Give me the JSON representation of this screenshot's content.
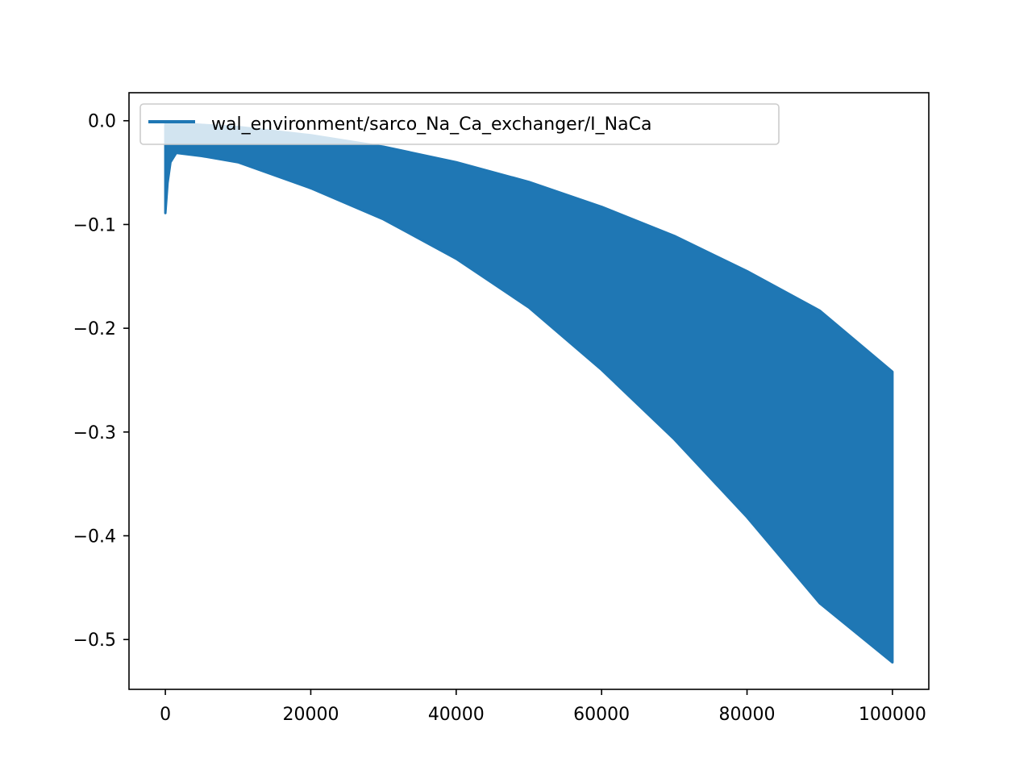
{
  "chart_data": {
    "type": "area",
    "title": "",
    "xlabel": "",
    "ylabel": "",
    "xlim": [
      -5000,
      105000
    ],
    "ylim": [
      -0.548,
      0.027
    ],
    "grid": false,
    "legend_position": "top-left",
    "xticks": [
      {
        "value": 0,
        "label": "0"
      },
      {
        "value": 20000,
        "label": "20000"
      },
      {
        "value": 40000,
        "label": "40000"
      },
      {
        "value": 60000,
        "label": "60000"
      },
      {
        "value": 80000,
        "label": "80000"
      },
      {
        "value": 100000,
        "label": "100000"
      }
    ],
    "yticks": [
      {
        "value": 0.0,
        "label": "0.0"
      },
      {
        "value": -0.1,
        "label": "−0.1"
      },
      {
        "value": -0.2,
        "label": "−0.2"
      },
      {
        "value": -0.3,
        "label": "−0.3"
      },
      {
        "value": -0.4,
        "label": "−0.4"
      },
      {
        "value": -0.5,
        "label": "−0.5"
      }
    ],
    "series": [
      {
        "name": "wal_environment/sarco_Na_Ca_exchanger/I_NaCa",
        "color": "#1f77b4",
        "description_of_shape": "rapidly oscillating signal; band between upper and lower envelopes",
        "upper_envelope": [
          {
            "x": 0,
            "y": -0.003
          },
          {
            "x": 1000,
            "y": -0.002
          },
          {
            "x": 5000,
            "y": -0.004
          },
          {
            "x": 10000,
            "y": -0.006
          },
          {
            "x": 20000,
            "y": -0.014
          },
          {
            "x": 30000,
            "y": -0.025
          },
          {
            "x": 40000,
            "y": -0.04
          },
          {
            "x": 50000,
            "y": -0.059
          },
          {
            "x": 60000,
            "y": -0.083
          },
          {
            "x": 70000,
            "y": -0.111
          },
          {
            "x": 80000,
            "y": -0.145
          },
          {
            "x": 90000,
            "y": -0.183
          },
          {
            "x": 100000,
            "y": -0.242
          }
        ],
        "lower_envelope": [
          {
            "x": 0,
            "y": -0.089
          },
          {
            "x": 300,
            "y": -0.06
          },
          {
            "x": 700,
            "y": -0.04
          },
          {
            "x": 1500,
            "y": -0.031
          },
          {
            "x": 5000,
            "y": -0.034
          },
          {
            "x": 10000,
            "y": -0.04
          },
          {
            "x": 20000,
            "y": -0.065
          },
          {
            "x": 30000,
            "y": -0.095
          },
          {
            "x": 40000,
            "y": -0.133
          },
          {
            "x": 50000,
            "y": -0.18
          },
          {
            "x": 60000,
            "y": -0.24
          },
          {
            "x": 70000,
            "y": -0.307
          },
          {
            "x": 80000,
            "y": -0.382
          },
          {
            "x": 90000,
            "y": -0.465
          },
          {
            "x": 100000,
            "y": -0.522
          }
        ]
      }
    ]
  }
}
